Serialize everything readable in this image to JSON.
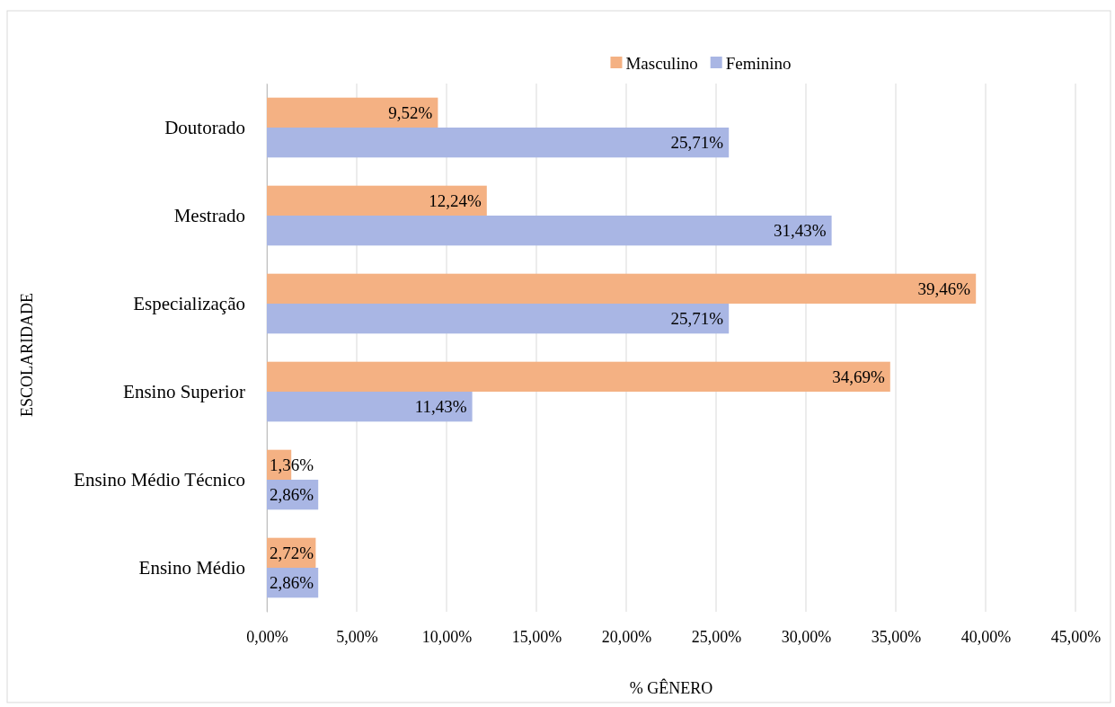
{
  "chart_data": {
    "type": "bar",
    "orientation": "horizontal",
    "xlabel": "% GÊNERO",
    "ylabel": "ESCOLARIDADE",
    "categories": [
      "Doutorado",
      "Mestrado",
      "Especialização",
      "Ensino Superior",
      "Ensino Médio Técnico",
      "Ensino Médio"
    ],
    "series": [
      {
        "name": "Masculino",
        "color": "#f4b183",
        "values": [
          9.52,
          12.24,
          39.46,
          34.69,
          1.36,
          2.72
        ],
        "value_labels": [
          "9,52%",
          "12,24%",
          "39,46%",
          "34,69%",
          "1,36%",
          "2,72%"
        ]
      },
      {
        "name": "Feminino",
        "color": "#a9b6e4",
        "values": [
          25.71,
          31.43,
          25.71,
          11.43,
          2.86,
          2.86
        ],
        "value_labels": [
          "25,71%",
          "31,43%",
          "25,71%",
          "11,43%",
          "2,86%",
          "2,86%"
        ]
      }
    ],
    "xlim": [
      0,
      45
    ],
    "xticks": [
      {
        "value": 0,
        "label": "0,00%"
      },
      {
        "value": 5,
        "label": "5,00%"
      },
      {
        "value": 10,
        "label": "10,00%"
      },
      {
        "value": 15,
        "label": "15,00%"
      },
      {
        "value": 20,
        "label": "20,00%"
      },
      {
        "value": 25,
        "label": "25,00%"
      },
      {
        "value": 30,
        "label": "30,00%"
      },
      {
        "value": 35,
        "label": "35,00%"
      },
      {
        "value": 40,
        "label": "40,00%"
      },
      {
        "value": 45,
        "label": "45,00%"
      }
    ],
    "grid": "x",
    "legend": "top"
  }
}
